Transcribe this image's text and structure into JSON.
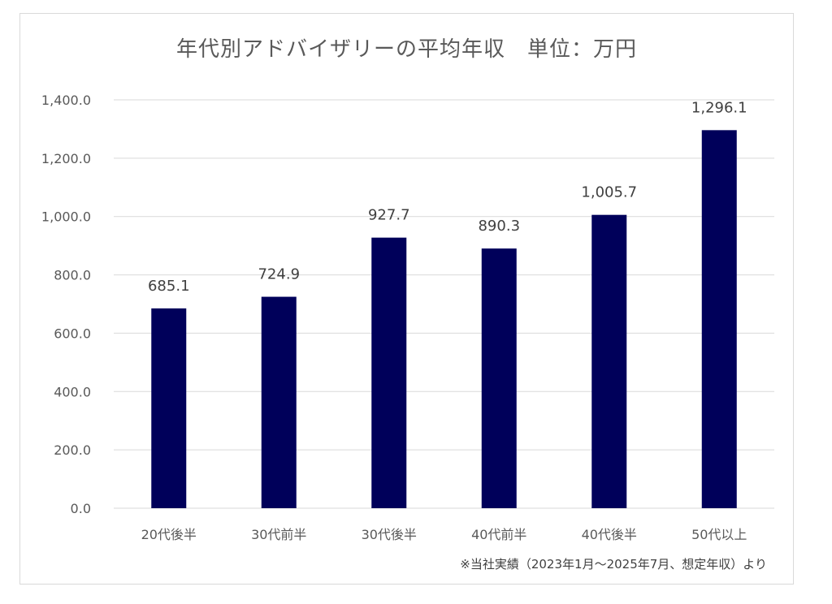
{
  "chart_data": {
    "type": "bar",
    "title": "年代別アドバイザリーの平均年収　単位：万円",
    "categories": [
      "20代後半",
      "30代前半",
      "30代後半",
      "40代前半",
      "40代後半",
      "50代以上"
    ],
    "values": [
      685.1,
      724.9,
      927.7,
      890.3,
      1005.7,
      1296.1
    ],
    "data_labels": [
      "685.1",
      "724.9",
      "927.7",
      "890.3",
      "1,005.7",
      "1,296.1"
    ],
    "ylim": [
      0,
      1400
    ],
    "yticks": [
      0,
      200,
      400,
      600,
      800,
      1000,
      1200,
      1400
    ],
    "ytick_labels": [
      "0.0",
      "200.0",
      "400.0",
      "600.0",
      "800.0",
      "1,000.0",
      "1,200.0",
      "1,400.0"
    ],
    "xlabel": "",
    "ylabel": "",
    "grid": true,
    "legend": "none",
    "bar_color": "#00005a",
    "footnote": "※当社実績（2023年1月～2025年7月、想定年収）より"
  }
}
